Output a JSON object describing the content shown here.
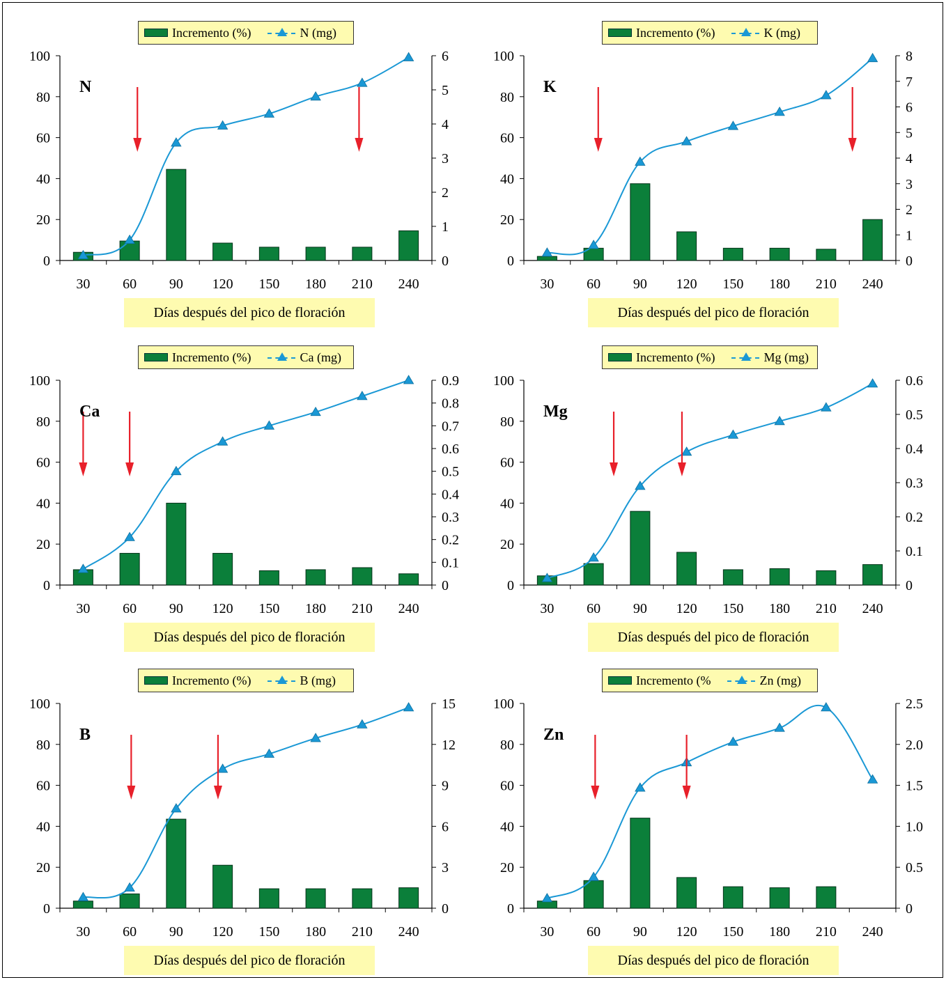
{
  "x_axis_title": "Días después del pico de floración",
  "colors": {
    "bar": "#0b7f3a",
    "bar_stroke": "#05331a",
    "line": "#1a98d5",
    "arrow": "#e8202a"
  },
  "chart_data": [
    {
      "type": "bar+line",
      "nutrient": "N",
      "legend": {
        "bar_label": "Incremento (%)",
        "line_label": "N (mg)"
      },
      "categories": [
        30,
        60,
        90,
        120,
        150,
        180,
        210,
        240
      ],
      "ylim_left": [
        0,
        100
      ],
      "yticks_left": [
        "0",
        "20",
        "40",
        "60",
        "80",
        "100"
      ],
      "ylim_right": [
        0,
        6
      ],
      "yticks_right": [
        "0",
        "1",
        "2",
        "3",
        "4",
        "5",
        "6"
      ],
      "bars": [
        4,
        9.5,
        44.5,
        8.5,
        6.5,
        6.5,
        6.5,
        14.5
      ],
      "line": [
        0.15,
        0.6,
        3.45,
        3.95,
        4.3,
        4.8,
        5.2,
        5.95
      ],
      "arrows_at": [
        65,
        208
      ]
    },
    {
      "type": "bar+line",
      "nutrient": "K",
      "legend": {
        "bar_label": "Incremento (%)",
        "line_label": "K (mg)"
      },
      "categories": [
        30,
        60,
        90,
        120,
        150,
        180,
        210,
        240
      ],
      "ylim_left": [
        0,
        100
      ],
      "yticks_left": [
        "0",
        "20",
        "40",
        "60",
        "80",
        "100"
      ],
      "ylim_right": [
        0,
        8
      ],
      "yticks_right": [
        "0",
        "1",
        "2",
        "3",
        "4",
        "5",
        "6",
        "7",
        "8"
      ],
      "bars": [
        2,
        6,
        37.5,
        14,
        6,
        6,
        5.5,
        20
      ],
      "line": [
        0.3,
        0.6,
        3.85,
        4.65,
        5.25,
        5.8,
        6.45,
        7.9
      ],
      "arrows_at": [
        63,
        227
      ]
    },
    {
      "type": "bar+line",
      "nutrient": "Ca",
      "legend": {
        "bar_label": "Incremento (%)",
        "line_label": "Ca (mg)"
      },
      "categories": [
        30,
        60,
        90,
        120,
        150,
        180,
        210,
        240
      ],
      "ylim_left": [
        0,
        100
      ],
      "yticks_left": [
        "0",
        "20",
        "40",
        "60",
        "80",
        "100"
      ],
      "ylim_right": [
        0,
        0.9
      ],
      "yticks_right": [
        "0",
        "0.1",
        "0.2",
        "0.3",
        "0.4",
        "0.5",
        "0.6",
        "0.7",
        "0.8",
        "0.9"
      ],
      "bars": [
        7.5,
        15.5,
        40,
        15.5,
        7,
        7.5,
        8.5,
        5.5
      ],
      "line": [
        0.07,
        0.21,
        0.5,
        0.63,
        0.7,
        0.76,
        0.83,
        0.9
      ],
      "arrows_at": [
        30,
        60
      ]
    },
    {
      "type": "bar+line",
      "nutrient": "Mg",
      "legend": {
        "bar_label": "Incremento (%)",
        "line_label": "Mg (mg)"
      },
      "categories": [
        30,
        60,
        90,
        120,
        150,
        180,
        210,
        240
      ],
      "ylim_left": [
        0,
        100
      ],
      "yticks_left": [
        "0",
        "20",
        "40",
        "60",
        "80",
        "100"
      ],
      "ylim_right": [
        0,
        0.6
      ],
      "yticks_right": [
        "0",
        "0.1",
        "0.2",
        "0.3",
        "0.4",
        "0.5",
        "0.6"
      ],
      "bars": [
        4.5,
        10.5,
        36,
        16,
        7.5,
        8,
        7,
        10
      ],
      "line": [
        0.02,
        0.08,
        0.29,
        0.39,
        0.44,
        0.48,
        0.52,
        0.59
      ],
      "arrows_at": [
        73,
        117
      ]
    },
    {
      "type": "bar+line",
      "nutrient": "B",
      "legend": {
        "bar_label": "Incremento (%)",
        "line_label": "B (mg)"
      },
      "categories": [
        30,
        60,
        90,
        120,
        150,
        180,
        210,
        240
      ],
      "ylim_left": [
        0,
        100
      ],
      "yticks_left": [
        "0",
        "20",
        "40",
        "60",
        "80",
        "100"
      ],
      "ylim_right": [
        0,
        15
      ],
      "yticks_right": [
        "0",
        "3",
        "6",
        "9",
        "12",
        "15"
      ],
      "bars": [
        3.5,
        7,
        43.5,
        21,
        9.5,
        9.5,
        9.5,
        10
      ],
      "line": [
        0.8,
        1.5,
        7.3,
        10.2,
        11.3,
        12.45,
        13.45,
        14.7
      ],
      "arrows_at": [
        61,
        117
      ]
    },
    {
      "type": "bar+line",
      "nutrient": "Zn",
      "legend": {
        "bar_label": "Incremento (%",
        "line_label": "Zn (mg)"
      },
      "categories": [
        30,
        60,
        90,
        120,
        150,
        180,
        210,
        240
      ],
      "ylim_left": [
        0,
        100
      ],
      "yticks_left": [
        "0",
        "20",
        "40",
        "60",
        "80",
        "100"
      ],
      "ylim_right": [
        0,
        2.5
      ],
      "yticks_right": [
        "0",
        "0.5",
        "1.0",
        "1.5",
        "2.0",
        "2.5"
      ],
      "bars": [
        3.5,
        13.5,
        44,
        15,
        10.5,
        10,
        10.5,
        0
      ],
      "line": [
        0.12,
        0.38,
        1.47,
        1.78,
        2.03,
        2.2,
        2.45,
        1.57
      ],
      "arrows_at": [
        61,
        120
      ]
    }
  ]
}
